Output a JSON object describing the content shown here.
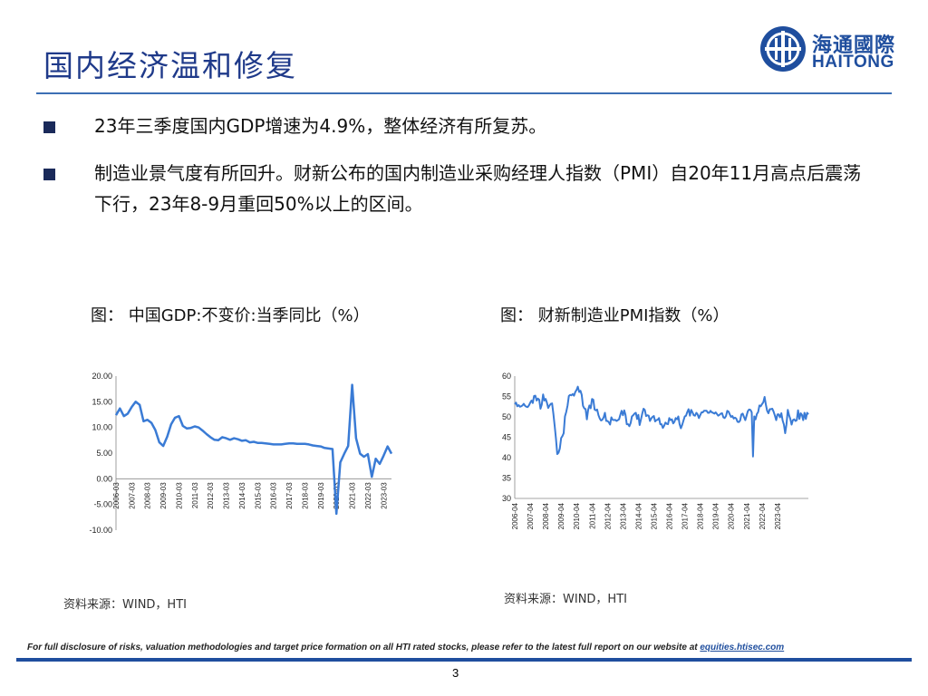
{
  "header": {
    "title": "国内经济温和修复",
    "logo_cn": "海通國際",
    "logo_en": "HAITONG"
  },
  "bullets": [
    "23年三季度国内GDP增速为4.9%，整体经济有所复苏。",
    "制造业景气度有所回升。财新公布的国内制造业采购经理人指数（PMI）自20年11月高点后震荡下行，23年8-9月重回50%以上的区间。"
  ],
  "captions": {
    "left": "图：  中国GDP:不变价:当季同比（%）",
    "right": "图：  财新制造业PMI指数（%）"
  },
  "sources": {
    "left": "资料来源：WIND，HTI",
    "right": "资料来源：WIND，HTI"
  },
  "footer": {
    "note": "For full disclosure of risks, valuation methodologies and target price formation on all HTI rated stocks, please refer to the latest full report on our website at ",
    "link": "equities.htisec.com",
    "page": "3"
  },
  "colors": {
    "line": "#3a7bd5",
    "brand": "#1f4e9e",
    "title": "#1f3a8a"
  },
  "chart_data": [
    {
      "type": "line",
      "ylim": [
        -10,
        20
      ],
      "yticks": [
        "20.00",
        "15.00",
        "10.00",
        "5.00",
        "0.00",
        "-5.00",
        "-10.00"
      ],
      "xticks": [
        "2006-03",
        "2007-03",
        "2008-03",
        "2009-03",
        "2010-03",
        "2011-03",
        "2012-03",
        "2013-03",
        "2014-03",
        "2015-03",
        "2016-03",
        "2017-03",
        "2018-03",
        "2019-03",
        "2020-03",
        "2021-03",
        "2022-03",
        "2023-03"
      ],
      "x": [
        "2006-03",
        "2006-06",
        "2006-09",
        "2006-12",
        "2007-03",
        "2007-06",
        "2007-09",
        "2007-12",
        "2008-03",
        "2008-06",
        "2008-09",
        "2008-12",
        "2009-03",
        "2009-06",
        "2009-09",
        "2009-12",
        "2010-03",
        "2010-06",
        "2010-09",
        "2010-12",
        "2011-03",
        "2011-06",
        "2011-09",
        "2011-12",
        "2012-03",
        "2012-06",
        "2012-09",
        "2012-12",
        "2013-03",
        "2013-06",
        "2013-09",
        "2013-12",
        "2014-03",
        "2014-06",
        "2014-09",
        "2014-12",
        "2015-03",
        "2015-06",
        "2015-09",
        "2015-12",
        "2016-03",
        "2016-06",
        "2016-09",
        "2016-12",
        "2017-03",
        "2017-06",
        "2017-09",
        "2017-12",
        "2018-03",
        "2018-06",
        "2018-09",
        "2018-12",
        "2019-03",
        "2019-06",
        "2019-09",
        "2019-12",
        "2020-03",
        "2020-06",
        "2020-09",
        "2020-12",
        "2021-03",
        "2021-06",
        "2021-09",
        "2021-12",
        "2022-03",
        "2022-06",
        "2022-09",
        "2022-12",
        "2023-03",
        "2023-06",
        "2023-09"
      ],
      "values": [
        12.4,
        13.7,
        12.2,
        12.7,
        14.0,
        15.0,
        14.4,
        11.2,
        11.5,
        10.9,
        9.5,
        7.1,
        6.4,
        8.2,
        10.6,
        11.9,
        12.2,
        10.3,
        9.8,
        9.9,
        10.2,
        10.0,
        9.4,
        8.7,
        8.1,
        7.6,
        7.5,
        8.1,
        7.9,
        7.6,
        7.9,
        7.7,
        7.4,
        7.5,
        7.1,
        7.2,
        7.0,
        7.0,
        6.9,
        6.8,
        6.7,
        6.7,
        6.7,
        6.8,
        6.9,
        6.9,
        6.8,
        6.8,
        6.8,
        6.7,
        6.5,
        6.4,
        6.3,
        6.0,
        5.9,
        5.8,
        -6.8,
        3.2,
        4.9,
        6.4,
        18.3,
        7.9,
        4.9,
        4.3,
        4.8,
        0.4,
        3.9,
        2.9,
        4.5,
        6.3,
        4.9
      ]
    },
    {
      "type": "line",
      "ylim": [
        30,
        60
      ],
      "yticks": [
        "60",
        "55",
        "50",
        "45",
        "40",
        "35",
        "30"
      ],
      "xticks": [
        "2006-04",
        "2007-04",
        "2008-04",
        "2009-04",
        "2010-04",
        "2011-04",
        "2012-04",
        "2013-04",
        "2014-04",
        "2015-04",
        "2016-04",
        "2017-04",
        "2018-04",
        "2019-04",
        "2020-04",
        "2021-04",
        "2022-04",
        "2023-04"
      ],
      "x_start": "2006-04",
      "x_step": "month",
      "values": [
        53.1,
        53.5,
        52.6,
        52.9,
        52.5,
        52.6,
        52.8,
        53.2,
        52.7,
        52.5,
        52.4,
        52.8,
        53.5,
        54.0,
        53.4,
        55.1,
        55.2,
        54.0,
        54.5,
        54.2,
        52.0,
        53.0,
        55.5,
        54.0,
        54.4,
        53.5,
        52.2,
        52.8,
        53.2,
        53.3,
        50.8,
        47.7,
        44.6,
        40.9,
        41.2,
        42.2,
        44.8,
        45.3,
        46.0,
        50.1,
        51.2,
        52.8,
        55.1,
        55.4,
        55.3,
        55.6,
        55.2,
        56.1,
        56.6,
        57.4,
        56.1,
        56.4,
        55.4,
        52.7,
        52.1,
        51.9,
        49.4,
        51.7,
        52.8,
        52.1,
        54.4,
        54.2,
        51.8,
        51.6,
        51.8,
        50.4,
        49.6,
        49.1,
        49.3,
        49.9,
        51.0,
        49.0,
        49.0,
        48.7,
        48.1,
        49.9,
        49.3,
        49.2,
        49.3,
        49.0,
        49.2,
        49.4,
        50.5,
        51.5,
        50.4,
        51.6,
        50.5,
        48.2,
        48.2,
        47.7,
        48.5,
        50.1,
        50.4,
        50.8,
        51.0,
        49.5,
        50.5,
        48.0,
        49.4,
        50.8,
        52.0,
        51.7,
        50.2,
        50.4,
        50.3,
        49.0,
        49.6,
        50.0,
        50.2,
        48.9,
        49.2,
        49.3,
        49.7,
        48.2,
        48.2,
        47.3,
        47.8,
        48.6,
        48.3,
        48.2,
        49.7,
        49.2,
        49.4,
        48.4,
        48.8,
        49.7,
        49.4,
        50.1,
        48.2,
        47.2,
        48.0,
        49.1,
        50.1,
        50.3,
        51.2,
        51.9,
        50.3,
        51.7,
        51.1,
        50.4,
        50.3,
        51.0,
        50.6,
        49.7,
        50.4,
        51.1,
        51.1,
        51.5,
        51.5,
        51.5,
        51.0,
        51.0,
        51.5,
        51.1,
        51.0,
        50.8,
        51.1,
        50.7,
        50.3,
        50.5,
        50.8,
        50.9,
        49.9,
        49.7,
        50.2,
        51.5,
        51.3,
        50.6,
        50.0,
        50.2,
        49.6,
        49.8,
        49.6,
        48.8,
        48.7,
        49.1,
        50.6,
        50.8,
        50.0,
        49.2,
        50.3,
        51.4,
        51.8,
        51.7,
        51.1,
        40.3,
        50.1,
        49.4,
        50.7,
        51.2,
        52.8,
        52.6,
        53.1,
        53.6,
        54.9,
        53.0,
        51.5,
        50.9,
        51.9,
        51.9,
        52.0,
        51.3,
        50.3,
        49.2,
        50.6,
        50.6,
        49.9,
        50.9,
        49.1,
        48.1,
        46.0,
        48.1,
        51.7,
        50.4,
        49.5,
        48.1,
        49.2,
        49.4,
        49.0,
        49.2,
        51.6,
        49.5,
        50.9,
        50.5,
        49.2,
        51.0,
        49.5,
        51.0,
        50.6
      ]
    }
  ]
}
